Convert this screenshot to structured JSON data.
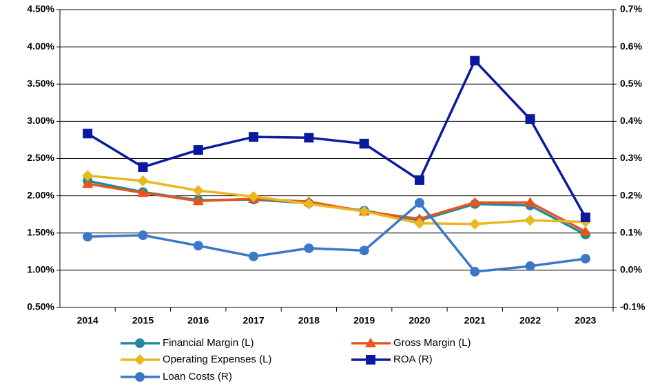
{
  "chart_data": {
    "type": "line",
    "categories": [
      "2014",
      "2015",
      "2016",
      "2017",
      "2018",
      "2019",
      "2020",
      "2021",
      "2022",
      "2023"
    ],
    "ylim": [
      0.5,
      4.5
    ],
    "yticks": [
      {
        "value": 0.5,
        "label": "0.50%"
      },
      {
        "value": 1.0,
        "label": "1.00%"
      },
      {
        "value": 1.5,
        "label": "1.50%"
      },
      {
        "value": 2.0,
        "label": "2.00%"
      },
      {
        "value": 2.5,
        "label": "2.50%"
      },
      {
        "value": 3.0,
        "label": "3.00%"
      },
      {
        "value": 3.5,
        "label": "3.50%"
      },
      {
        "value": 4.0,
        "label": "4.00%"
      },
      {
        "value": 4.5,
        "label": "4.50%"
      }
    ],
    "y2lim": [
      -0.1,
      0.7
    ],
    "y2ticks": [
      {
        "value": -0.1,
        "label": "-0.1%"
      },
      {
        "value": 0.0,
        "label": "0.0%"
      },
      {
        "value": 0.1,
        "label": "0.1%"
      },
      {
        "value": 0.2,
        "label": "0.2%"
      },
      {
        "value": 0.3,
        "label": "0.3%"
      },
      {
        "value": 0.4,
        "label": "0.4%"
      },
      {
        "value": 0.5,
        "label": "0.5%"
      },
      {
        "value": 0.6,
        "label": "0.6%"
      },
      {
        "value": 0.7,
        "label": "0.7%"
      }
    ],
    "grid": true,
    "series": [
      {
        "name": "Financial Margin (L)",
        "color": "#1f8a9e",
        "marker": "circle",
        "values": [
          2.2,
          2.05,
          1.94,
          1.95,
          1.9,
          1.8,
          1.67,
          1.89,
          1.87,
          1.48
        ]
      },
      {
        "name": "Gross Margin (L)",
        "color": "#e8541c",
        "marker": "triangle",
        "values": [
          2.16,
          2.04,
          1.93,
          1.96,
          1.92,
          1.79,
          1.69,
          1.91,
          1.91,
          1.52
        ]
      },
      {
        "name": "Operating Expenses (L)",
        "color": "#e8b820",
        "marker": "diamond",
        "values": [
          2.27,
          2.2,
          2.07,
          1.99,
          1.89,
          1.79,
          1.63,
          1.62,
          1.67,
          1.65
        ]
      },
      {
        "name": "ROA (R)",
        "color": "#0a1a9e",
        "marker": "square",
        "axis": "y2",
        "values": [
          0.367,
          0.277,
          0.323,
          0.358,
          0.356,
          0.34,
          0.242,
          0.563,
          0.406,
          0.142
        ]
      },
      {
        "name": "Loan Costs (R)",
        "color": "#3b78c8",
        "marker": "circle",
        "axis": "y2",
        "values": [
          0.09,
          0.094,
          0.066,
          0.037,
          0.059,
          0.053,
          0.181,
          -0.004,
          0.011,
          0.031
        ]
      }
    ]
  }
}
